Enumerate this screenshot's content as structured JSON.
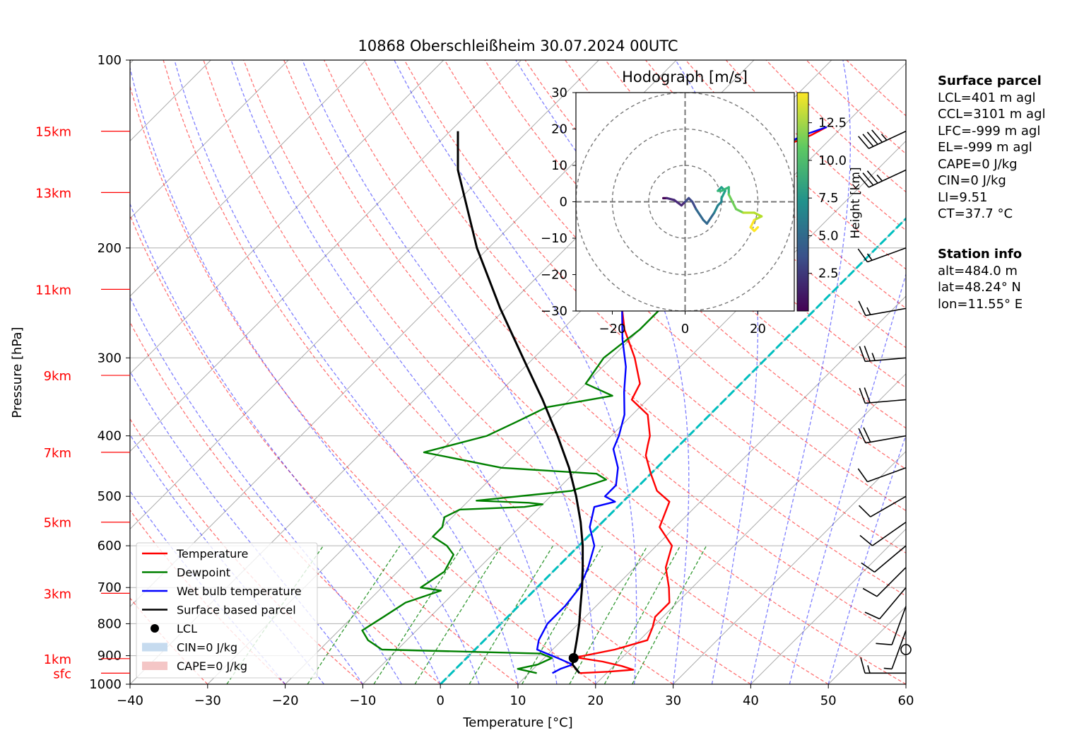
{
  "title": "10868 Oberschleißheim 30.07.2024 00UTC",
  "axes": {
    "xlabel": "Temperature [°C]",
    "ylabel": "Pressure [hPa]",
    "xlim": [
      -40,
      60
    ],
    "ylim": [
      1000,
      100
    ],
    "x_ticks": [
      "−40",
      "−30",
      "−20",
      "−10",
      "0",
      "10",
      "20",
      "30",
      "40",
      "50",
      "60"
    ],
    "y_ticks": [
      "100",
      "200",
      "300",
      "400",
      "500",
      "600",
      "700",
      "800",
      "900",
      "1000"
    ],
    "height_labels": [
      "15km",
      "13km",
      "11km",
      "9km",
      "7km",
      "5km",
      "3km",
      "1km",
      "sfc"
    ],
    "height_label_color": "#ff0000"
  },
  "legend": {
    "placement": "lower-left",
    "items": [
      {
        "label": "Temperature",
        "color": "#ff0000"
      },
      {
        "label": "Dewpoint",
        "color": "#008000"
      },
      {
        "label": "Wet bulb temperature",
        "color": "#0000ff"
      },
      {
        "label": "Surface based parcel",
        "color": "#000000"
      },
      {
        "label": "LCL",
        "color": "#000000"
      },
      {
        "label": "CIN=0 J/kg",
        "color": "#c6dbef"
      },
      {
        "label": "CAPE=0 J/kg",
        "color": "#f4c6c6"
      }
    ]
  },
  "hodograph": {
    "title": "Hodograph [m/s]",
    "x_ticks": [
      "−20",
      "0",
      "20"
    ],
    "y_ticks": [
      "30",
      "20",
      "10",
      "0",
      "−10",
      "−20",
      "−30"
    ],
    "colorbar_label": "Height [km]",
    "colorbar_ticks": [
      "12.5",
      "10.0",
      "7.5",
      "5.0",
      "2.5"
    ]
  },
  "surface_parcel": {
    "heading": "Surface parcel",
    "lines": [
      "LCL=401 m agl",
      "CCL=3101 m agl",
      "LFC=-999 m agl",
      "EL=-999 m agl",
      "CAPE=0 J/kg",
      "CIN=0 J/kg",
      "LI=9.51",
      "CT=37.7 °C"
    ]
  },
  "station_info": {
    "heading": "Station info",
    "lines": [
      "alt=484.0 m",
      "lat=48.24° N",
      "lon=11.55° E"
    ]
  },
  "chart_data": {
    "type": "line",
    "title": "10868 Oberschleißheim 30.07.2024 00UTC",
    "xlabel": "Temperature [°C]",
    "ylabel": "Pressure [hPa]",
    "xlim": [
      -40,
      60
    ],
    "ylim": [
      1000,
      100
    ],
    "y_scale": "log",
    "grid": true,
    "skew": "skew-T log-p",
    "height_markers": [
      {
        "label": "15km",
        "p": 130
      },
      {
        "label": "13km",
        "p": 163
      },
      {
        "label": "11km",
        "p": 233
      },
      {
        "label": "9km",
        "p": 320
      },
      {
        "label": "7km",
        "p": 425
      },
      {
        "label": "5km",
        "p": 550
      },
      {
        "label": "3km",
        "p": 715
      },
      {
        "label": "1km",
        "p": 910
      },
      {
        "label": "sfc",
        "p": 960
      }
    ],
    "series": [
      {
        "name": "Temperature",
        "color": "#ff0000",
        "points": [
          [
            960,
            16.5
          ],
          [
            955,
            20
          ],
          [
            948,
            23
          ],
          [
            935,
            21
          ],
          [
            920,
            18
          ],
          [
            906,
            14
          ],
          [
            880,
            18
          ],
          [
            850,
            21
          ],
          [
            810,
            20
          ],
          [
            780,
            19
          ],
          [
            740,
            19
          ],
          [
            700,
            17
          ],
          [
            650,
            14
          ],
          [
            600,
            12
          ],
          [
            560,
            8
          ],
          [
            510,
            6
          ],
          [
            490,
            3
          ],
          [
            460,
            0
          ],
          [
            430,
            -3
          ],
          [
            415,
            -4
          ],
          [
            400,
            -5
          ],
          [
            370,
            -8
          ],
          [
            350,
            -12
          ],
          [
            330,
            -13
          ],
          [
            300,
            -17
          ],
          [
            270,
            -22
          ],
          [
            250,
            -25
          ],
          [
            230,
            -29
          ],
          [
            215,
            -33
          ],
          [
            200,
            -35
          ],
          [
            185,
            -36
          ],
          [
            175,
            -35
          ],
          [
            165,
            -33
          ],
          [
            150,
            -30
          ],
          [
            140,
            -26
          ],
          [
            132,
            -23
          ],
          [
            128,
            -22
          ]
        ]
      },
      {
        "name": "Dewpoint",
        "color": "#008000",
        "points": [
          [
            960,
            11
          ],
          [
            955,
            10
          ],
          [
            945,
            8
          ],
          [
            930,
            10
          ],
          [
            908,
            11
          ],
          [
            893,
            9
          ],
          [
            880,
            -12
          ],
          [
            850,
            -15
          ],
          [
            820,
            -17
          ],
          [
            780,
            -16
          ],
          [
            740,
            -15
          ],
          [
            708,
            -12
          ],
          [
            700,
            -15
          ],
          [
            660,
            -14
          ],
          [
            620,
            -15
          ],
          [
            600,
            -17
          ],
          [
            580,
            -20
          ],
          [
            560,
            -20
          ],
          [
            540,
            -21
          ],
          [
            525,
            -20
          ],
          [
            520,
            -12
          ],
          [
            515,
            -10
          ],
          [
            512,
            -12
          ],
          [
            508,
            -19
          ],
          [
            490,
            -8
          ],
          [
            470,
            -5
          ],
          [
            460,
            -7
          ],
          [
            450,
            -20
          ],
          [
            425,
            -32
          ],
          [
            400,
            -26
          ],
          [
            380,
            -24
          ],
          [
            360,
            -22
          ],
          [
            345,
            -15
          ],
          [
            330,
            -20
          ],
          [
            300,
            -21
          ],
          [
            270,
            -20
          ],
          [
            250,
            -20
          ],
          [
            230,
            -21
          ],
          [
            215,
            -19
          ],
          [
            200,
            -19
          ],
          [
            185,
            -24
          ],
          [
            175,
            -27
          ],
          [
            160,
            -26
          ],
          [
            150,
            -24
          ],
          [
            140,
            -25
          ],
          [
            130,
            -24
          ]
        ]
      },
      {
        "name": "Wet bulb temperature",
        "color": "#0000ff",
        "points": [
          [
            960,
            13
          ],
          [
            945,
            13.5
          ],
          [
            930,
            14.5
          ],
          [
            910,
            12
          ],
          [
            880,
            8
          ],
          [
            850,
            7
          ],
          [
            800,
            6
          ],
          [
            750,
            6
          ],
          [
            700,
            5.5
          ],
          [
            650,
            4
          ],
          [
            600,
            2
          ],
          [
            560,
            -1
          ],
          [
            520,
            -3
          ],
          [
            510,
            -1
          ],
          [
            500,
            -3
          ],
          [
            480,
            -3
          ],
          [
            450,
            -5
          ],
          [
            420,
            -8
          ],
          [
            400,
            -9
          ],
          [
            370,
            -11
          ],
          [
            340,
            -14
          ],
          [
            310,
            -17
          ],
          [
            280,
            -21
          ],
          [
            250,
            -25
          ],
          [
            230,
            -29
          ],
          [
            215,
            -33
          ],
          [
            200,
            -35
          ],
          [
            185,
            -36
          ],
          [
            175,
            -35
          ],
          [
            165,
            -33
          ],
          [
            150,
            -30
          ],
          [
            140,
            -26
          ],
          [
            132,
            -24
          ],
          [
            128,
            -22
          ]
        ]
      },
      {
        "name": "Surface based parcel",
        "color": "#000000",
        "points": [
          [
            960,
            16.5
          ],
          [
            930,
            14.5
          ],
          [
            908,
            13.8
          ],
          [
            880,
            12.9
          ],
          [
            850,
            11.9
          ],
          [
            800,
            10.1
          ],
          [
            750,
            8.0
          ],
          [
            700,
            5.8
          ],
          [
            650,
            3.3
          ],
          [
            600,
            0.5
          ],
          [
            550,
            -2.8
          ],
          [
            500,
            -6.7
          ],
          [
            450,
            -11.3
          ],
          [
            400,
            -16.9
          ],
          [
            350,
            -23.5
          ],
          [
            300,
            -31.4
          ],
          [
            250,
            -40.7
          ],
          [
            200,
            -51.5
          ],
          [
            150,
            -64
          ],
          [
            130,
            -69
          ]
        ]
      }
    ],
    "lcl": {
      "label": "LCL",
      "p": 908,
      "t": 13.8
    },
    "cin": "CIN=0 J/kg",
    "cape": "CAPE=0 J/kg",
    "wind_barbs": [
      {
        "p": 960,
        "dir": 270,
        "spd_kt": 15
      },
      {
        "p": 880,
        "dir": 0,
        "spd_kt": 0
      },
      {
        "p": 820,
        "dir": 200,
        "spd_kt": 5
      },
      {
        "p": 750,
        "dir": 200,
        "spd_kt": 10
      },
      {
        "p": 700,
        "dir": 220,
        "spd_kt": 10
      },
      {
        "p": 650,
        "dir": 225,
        "spd_kt": 10
      },
      {
        "p": 600,
        "dir": 230,
        "spd_kt": 10
      },
      {
        "p": 550,
        "dir": 235,
        "spd_kt": 10
      },
      {
        "p": 500,
        "dir": 240,
        "spd_kt": 10
      },
      {
        "p": 450,
        "dir": 250,
        "spd_kt": 10
      },
      {
        "p": 400,
        "dir": 260,
        "spd_kt": 20
      },
      {
        "p": 350,
        "dir": 265,
        "spd_kt": 20
      },
      {
        "p": 300,
        "dir": 265,
        "spd_kt": 25
      },
      {
        "p": 250,
        "dir": 260,
        "spd_kt": 15
      },
      {
        "p": 200,
        "dir": 250,
        "spd_kt": 15
      },
      {
        "p": 150,
        "dir": 245,
        "spd_kt": 35
      },
      {
        "p": 130,
        "dir": 245,
        "spd_kt": 45
      }
    ],
    "hodograph_data": {
      "title": "Hodograph [m/s]",
      "xlim": [
        -30,
        30
      ],
      "ylim": [
        -30,
        30
      ],
      "rings": [
        10,
        20,
        30
      ],
      "colorbar_label": "Height [km]",
      "points": [
        [
          -6,
          1,
          0.5
        ],
        [
          -5,
          1,
          1.0
        ],
        [
          -3,
          0.5,
          1.5
        ],
        [
          -1,
          -1,
          2.0
        ],
        [
          0,
          0,
          2.5
        ],
        [
          1,
          1,
          3.0
        ],
        [
          2,
          0,
          3.5
        ],
        [
          3,
          -2,
          4.0
        ],
        [
          5,
          -5,
          4.5
        ],
        [
          6,
          -6,
          5.0
        ],
        [
          8,
          -3,
          5.5
        ],
        [
          9,
          -1,
          6.0
        ],
        [
          10,
          0,
          6.5
        ],
        [
          10,
          1,
          7.0
        ],
        [
          11,
          3,
          7.5
        ],
        [
          10,
          4,
          8.0
        ],
        [
          9,
          3,
          8.5
        ],
        [
          10,
          3,
          9.0
        ],
        [
          12,
          4,
          9.5
        ],
        [
          12,
          2,
          10.0
        ],
        [
          13,
          0,
          10.5
        ],
        [
          14,
          -2,
          11.0
        ],
        [
          16,
          -3,
          11.5
        ],
        [
          19,
          -3,
          12.0
        ],
        [
          21,
          -4,
          12.5
        ],
        [
          19,
          -5,
          13.0
        ],
        [
          18,
          -7,
          13.5
        ],
        [
          19,
          -8,
          14.0
        ],
        [
          20,
          -7,
          14.5
        ]
      ]
    }
  }
}
